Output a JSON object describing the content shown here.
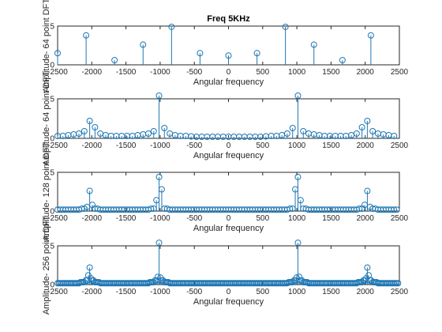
{
  "figure": {
    "title": "Freq 5KHz"
  },
  "colors": {
    "stem": "#1f77b4",
    "axis": "#262626",
    "background": "#ffffff"
  },
  "chart_data": [
    {
      "type": "stem",
      "title": "Freq 5KHz",
      "xlabel": "Angular frequency",
      "ylabel": "Amplitude- 64 point DFT",
      "xlim": [
        -2500,
        2500
      ],
      "ylim": [
        0,
        5
      ],
      "xticks": [
        "-2500",
        "-2000",
        "-1500",
        "-1000",
        "-500",
        "0",
        "500",
        "1000",
        "1500",
        "2000",
        "2500"
      ],
      "yticks": [
        "0",
        "5"
      ],
      "series": [
        {
          "x": [
            -2500,
            -2083,
            -1667,
            -1250,
            -833,
            -417,
            0,
            417,
            833,
            1250,
            1667,
            2083
          ],
          "y": [
            1.5,
            3.8,
            0.6,
            2.6,
            4.9,
            1.5,
            1.2,
            1.5,
            4.9,
            2.6,
            0.6,
            3.8
          ]
        }
      ]
    },
    {
      "type": "stem",
      "xlabel": "Angular frequency",
      "ylabel": "Amplitude- 64 point DFT",
      "xlim": [
        -2500,
        2500
      ],
      "ylim": [
        0,
        5
      ],
      "xticks": [
        "-2500",
        "-2000",
        "-1500",
        "-1000",
        "-500",
        "0",
        "500",
        "1000",
        "1500",
        "2000",
        "2500"
      ],
      "yticks": [
        "0",
        "5"
      ],
      "series": [
        {
          "x": [
            -2500,
            -2422,
            -2344,
            -2266,
            -2188,
            -2109,
            -2031,
            -1953,
            -1875,
            -1797,
            -1719,
            -1641,
            -1563,
            -1484,
            -1406,
            -1328,
            -1250,
            -1172,
            -1094,
            -1016,
            -938,
            -859,
            -781,
            -703,
            -625,
            -547,
            -469,
            -391,
            -313,
            -234,
            -156,
            -78,
            0,
            78,
            156,
            234,
            313,
            391,
            469,
            547,
            625,
            703,
            781,
            859,
            938,
            1016,
            1094,
            1172,
            1250,
            1328,
            1406,
            1484,
            1563,
            1641,
            1719,
            1797,
            1875,
            1953,
            2031,
            2109,
            2188,
            2266,
            2344,
            2422
          ],
          "y": [
            0.3,
            0.3,
            0.4,
            0.5,
            0.6,
            0.9,
            2.2,
            1.4,
            0.6,
            0.4,
            0.3,
            0.3,
            0.3,
            0.3,
            0.3,
            0.4,
            0.5,
            0.6,
            0.9,
            5.4,
            1.3,
            0.6,
            0.4,
            0.3,
            0.3,
            0.25,
            0.2,
            0.2,
            0.2,
            0.2,
            0.2,
            0.2,
            0.2,
            0.2,
            0.2,
            0.2,
            0.2,
            0.2,
            0.2,
            0.25,
            0.3,
            0.3,
            0.4,
            0.6,
            1.3,
            5.4,
            0.9,
            0.6,
            0.5,
            0.4,
            0.3,
            0.3,
            0.3,
            0.3,
            0.3,
            0.4,
            0.6,
            1.4,
            2.2,
            0.9,
            0.6,
            0.5,
            0.4,
            0.3
          ]
        }
      ]
    },
    {
      "type": "stem",
      "xlabel": "Angular frequency",
      "ylabel": "Amplitude- 128 point DFT",
      "xlim": [
        -2500,
        2500
      ],
      "ylim": [
        0,
        5
      ],
      "xticks": [
        "-2500",
        "-2000",
        "-1500",
        "-1000",
        "-500",
        "0",
        "500",
        "1000",
        "1500",
        "2000",
        "2500"
      ],
      "yticks": [
        "0",
        "5"
      ],
      "peaks": [
        {
          "x": -1016,
          "y": 4.4
        },
        {
          "x": -977,
          "y": 2.8
        },
        {
          "x": -1055,
          "y": 1.4
        },
        {
          "x": 1016,
          "y": 4.4
        },
        {
          "x": 977,
          "y": 2.8
        },
        {
          "x": 1055,
          "y": 1.4
        },
        {
          "x": -2031,
          "y": 2.6
        },
        {
          "x": -1992,
          "y": 0.8
        },
        {
          "x": 2031,
          "y": 2.6
        },
        {
          "x": 1992,
          "y": 0.8
        }
      ]
    },
    {
      "type": "stem",
      "xlabel": "Angular frequency",
      "ylabel": "Amplitude- 256 point DFT",
      "xlim": [
        -2500,
        2500
      ],
      "ylim": [
        0,
        5
      ],
      "xticks": [
        "-2500",
        "-2000",
        "-1500",
        "-1000",
        "-500",
        "0",
        "500",
        "1000",
        "1500",
        "2000",
        "2500"
      ],
      "yticks": [
        "0",
        "5"
      ],
      "peaks": [
        {
          "x": -1016,
          "y": 5.4
        },
        {
          "x": -1035,
          "y": 1.0
        },
        {
          "x": -996,
          "y": 0.9
        },
        {
          "x": 1016,
          "y": 5.4
        },
        {
          "x": 1035,
          "y": 1.0
        },
        {
          "x": 996,
          "y": 0.9
        },
        {
          "x": -2031,
          "y": 2.2
        },
        {
          "x": -2051,
          "y": 1.2
        },
        {
          "x": -2012,
          "y": 0.8
        },
        {
          "x": 2031,
          "y": 2.2
        },
        {
          "x": 2051,
          "y": 1.2
        },
        {
          "x": 2012,
          "y": 0.8
        }
      ]
    }
  ]
}
